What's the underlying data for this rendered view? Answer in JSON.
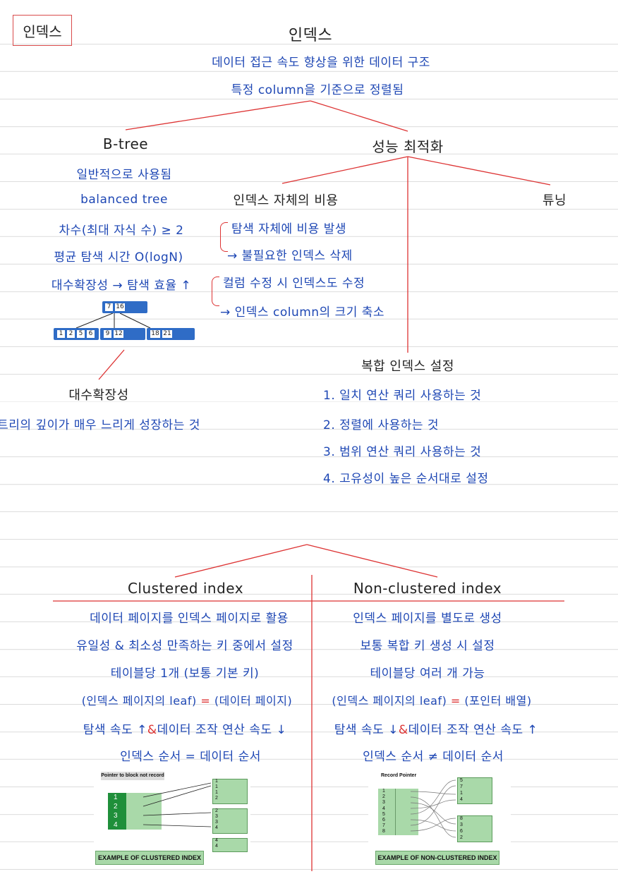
{
  "header_box": "인덱스",
  "title": "인덱스",
  "subtitle1": "데이터 접근 속도 향상을 위한 데이터 구조",
  "subtitle2": "특정 column을 기준으로 정렬됨",
  "btree": {
    "heading": "B-tree",
    "items": [
      "일반적으로 사용됨",
      "balanced tree",
      "차수(최대 자식 수) ≥ 2",
      "평균 탐색 시간 O(logN)",
      "대수확장성 → 탐색 효율 ↑"
    ],
    "root_keys": [
      "7",
      "16"
    ],
    "leaf_groups": [
      [
        "1",
        "2",
        "5",
        "6"
      ],
      [
        "9",
        "12"
      ],
      [
        "18",
        "21"
      ]
    ],
    "scal_heading": "대수확장성",
    "scal_desc": "트리의 깊이가 매우 느리게 성장하는 것"
  },
  "perf": {
    "heading": "성능 최적화",
    "cost_heading": "인덱스 자체의 비용",
    "tuning": "튜닝",
    "cost_items": [
      "탐색 자체에 비용 발생",
      "→ 불필요한 인덱스 삭제",
      "컬럼 수정 시 인덱스도 수정",
      "→ 인덱스 column의 크기 축소"
    ],
    "composite_heading": "복합 인덱스 설정",
    "composite_items": [
      "1. 일치 연산 쿼리 사용하는 것",
      "2. 정렬에 사용하는 것",
      "3. 범위 연산 쿼리 사용하는 것",
      "4. 고유성이 높은 순서대로 설정"
    ]
  },
  "clustered": {
    "heading": "Clustered index",
    "items": [
      "데이터 페이지를 인덱스 페이지로 활용",
      "유일성 & 최소성 만족하는 키 중에서 설정",
      "테이블당 1개 (보통 기본 키)"
    ],
    "leaf_left": "(인덱스 페이지의 leaf)",
    "leaf_eq": "=",
    "leaf_right": "(데이터 페이지)",
    "speed_a": "탐색 속도 ↑",
    "speed_amp": "&",
    "speed_b": "데이터 조작 연산 속도 ↓",
    "order": "인덱스 순서 = 데이터 순서",
    "figure": {
      "pointer_label": "Pointer to block not record",
      "keys": [
        "1",
        "2",
        "3",
        "4"
      ],
      "caption": "EXAMPLE OF CLUSTERED INDEX",
      "blocks": [
        [
          "1",
          "1",
          "1",
          "2"
        ],
        [
          "2",
          "3",
          "3",
          "4"
        ],
        [
          "4",
          "4"
        ]
      ]
    }
  },
  "nonclustered": {
    "heading": "Non-clustered index",
    "items": [
      "인덱스 페이지를 별도로 생성",
      "보통 복합 키 생성 시 설정",
      "테이블당 여러 개 가능"
    ],
    "leaf_left": "(인덱스 페이지의 leaf)",
    "leaf_eq": "=",
    "leaf_right": "(포인터 배열)",
    "speed_a": "탐색 속도 ↓",
    "speed_amp": "&",
    "speed_b": "데이터 조작 연산 속도 ↑",
    "order": "인덱스 순서 ≠ 데이터 순서",
    "figure": {
      "pointer_label": "Record Pointer",
      "keys": [
        "1",
        "2",
        "3",
        "4",
        "5",
        "6",
        "7",
        "8"
      ],
      "caption": "EXAMPLE OF NON-CLUSTERED INDEX",
      "blocks": [
        [
          "5",
          "7",
          "1",
          "4"
        ],
        [
          "8",
          "3",
          "6",
          "2"
        ]
      ]
    }
  }
}
